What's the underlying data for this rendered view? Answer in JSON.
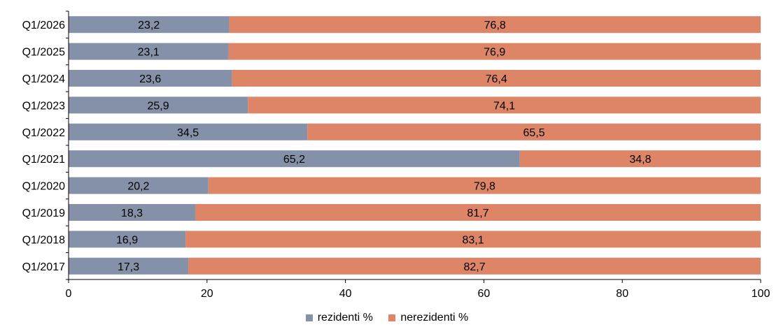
{
  "chart_data": {
    "type": "bar",
    "orientation": "horizontal",
    "stacked": true,
    "categories": [
      "Q1/2026",
      "Q1/2025",
      "Q1/2024",
      "Q1/2023",
      "Q1/2022",
      "Q1/2021",
      "Q1/2020",
      "Q1/2019",
      "Q1/2018",
      "Q1/2017"
    ],
    "series": [
      {
        "name": "rezidenti %",
        "color": "#8591A8",
        "values": [
          23.2,
          23.1,
          23.6,
          25.9,
          34.5,
          65.2,
          20.2,
          18.3,
          16.9,
          17.3
        ],
        "labels": [
          "23,2",
          "23,1",
          "23,6",
          "25,9",
          "34,5",
          "65,2",
          "20,2",
          "18,3",
          "16,9",
          "17,3"
        ]
      },
      {
        "name": "nerezidenti %",
        "color": "#DE8567",
        "values": [
          76.8,
          76.9,
          76.4,
          74.1,
          65.5,
          34.8,
          79.8,
          81.7,
          83.1,
          82.7
        ],
        "labels": [
          "76,8",
          "76,9",
          "76,4",
          "74,1",
          "65,5",
          "34,8",
          "79,8",
          "81,7",
          "83,1",
          "82,7"
        ]
      }
    ],
    "xlim": [
      0,
      100
    ],
    "xticks": [
      0,
      20,
      40,
      60,
      80,
      100
    ],
    "xtick_labels": [
      "0",
      "20",
      "40",
      "60",
      "80",
      "100"
    ],
    "grid": false,
    "legend_position": "bottom"
  }
}
